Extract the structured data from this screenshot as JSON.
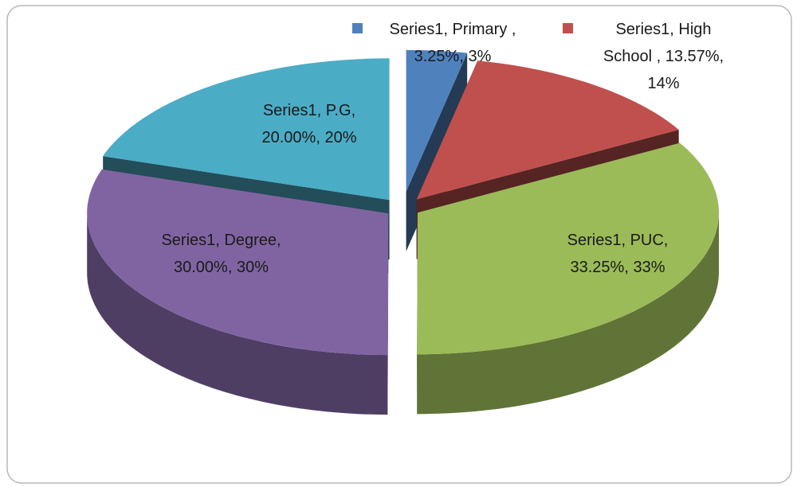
{
  "chart_data": {
    "type": "pie",
    "series_name": "Series1",
    "categories": [
      "Primary",
      "High School",
      "PUC",
      "Degree",
      "P.G"
    ],
    "values": [
      3.25,
      13.57,
      33.25,
      30.0,
      20.0
    ],
    "value_labels": [
      "Series1, Primary , 3.25%, 3%",
      "Series1, High School , 13.57%, 14%",
      "Series1, PUC, 33.25%, 33%",
      "Series1, Degree, 30.00%, 30%",
      "Series1, P.G, 20.00%, 20%"
    ],
    "colors": [
      "#4f81bd",
      "#c0504d",
      "#9bbb59",
      "#8064a2",
      "#4bacc6"
    ],
    "three_d": true,
    "exploded": true
  }
}
